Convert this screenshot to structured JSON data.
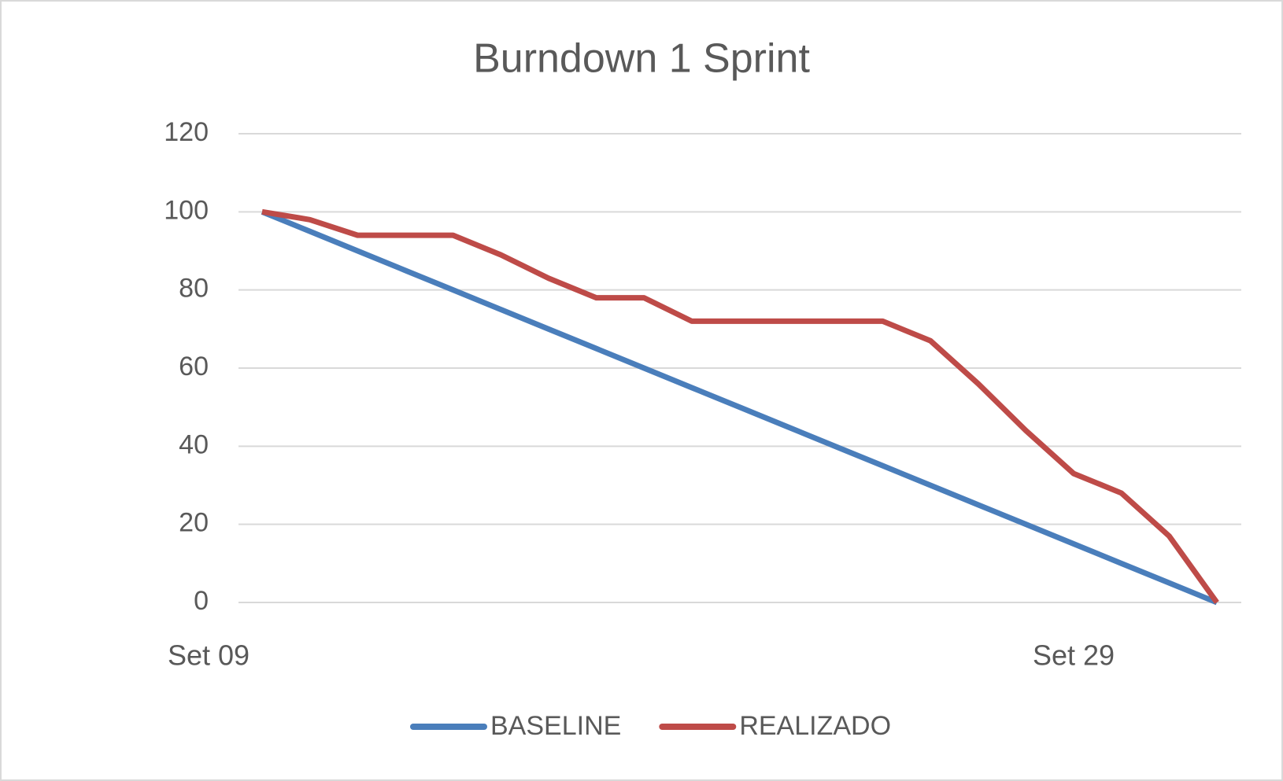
{
  "chart_data": {
    "type": "line",
    "title": "Burndown 1 Sprint",
    "categories": [
      "Set 09",
      null,
      null,
      null,
      null,
      null,
      null,
      null,
      null,
      null,
      null,
      null,
      null,
      null,
      null,
      null,
      null,
      "Set 29",
      null,
      null,
      null
    ],
    "series": [
      {
        "name": "BASELINE",
        "color": "#4a7ebb",
        "values": [
          100,
          95,
          90,
          85,
          80,
          75,
          70,
          65,
          60,
          55,
          50,
          45,
          40,
          35,
          30,
          25,
          20,
          15,
          10,
          5,
          0
        ]
      },
      {
        "name": "REALIZADO",
        "color": "#be4b48",
        "values": [
          100,
          98,
          94,
          94,
          94,
          89,
          83,
          78,
          78,
          72,
          72,
          72,
          72,
          72,
          67,
          56,
          44,
          33,
          28,
          17,
          0
        ]
      }
    ],
    "ylim": [
      0,
      120
    ],
    "yticks": [
      0,
      20,
      40,
      60,
      80,
      100,
      120
    ],
    "grid": true,
    "legend": "bottom"
  }
}
